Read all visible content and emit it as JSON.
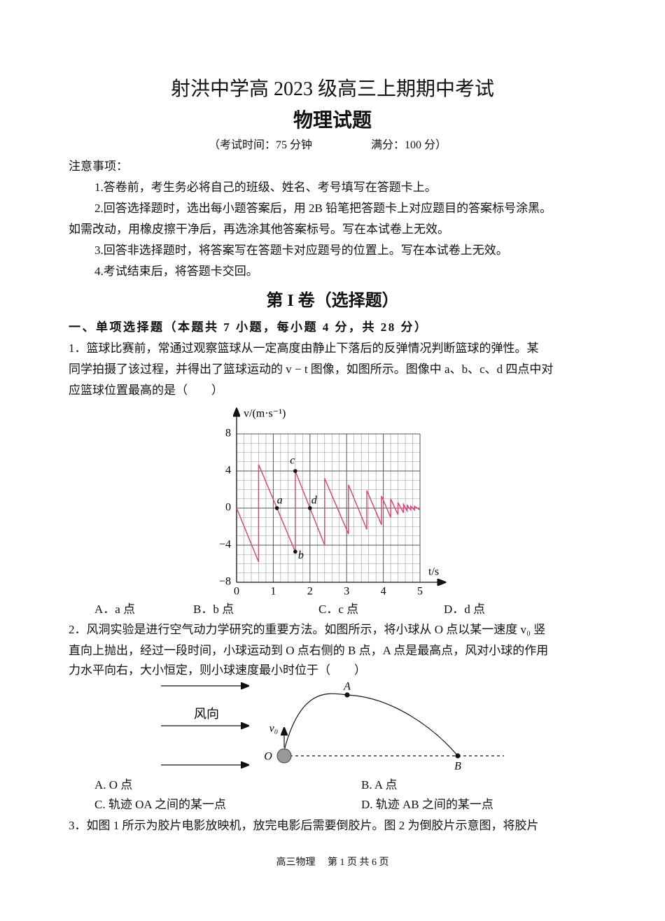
{
  "header": {
    "title": "射洪中学高 2023 级高三上期期中考试",
    "subtitle": "物理试题",
    "time": "（考试时间：75 分钟",
    "score": "满分：100 分）"
  },
  "notes": {
    "heading": "注意事项：",
    "lines": [
      "1.答卷前，考生务必将自己的班级、姓名、考号填写在答题卡上。",
      "2.回答选择题时，选出每小题答案后，用 2B 铅笔把答题卡上对应题目的答案标号涂黑。",
      "如需改动，用橡皮擦干净后，再选涂其他答案标号。写在本试卷上无效。",
      "3.回答非选择题时，将答案写在答题卡对应题号的位置上。写在本试卷上无效。",
      "4.考试结束后，将答题卡交回。"
    ]
  },
  "section": {
    "title": "第 I 卷（选择题）",
    "heading": "一、单项选择题（本题共 7 小题，每小题 4 分，共 28 分）"
  },
  "questions": [
    {
      "lines": [
        "1．篮球比赛前，常通过观察篮球从一定高度由静止下落后的反弹情况判断篮球的弹性。某",
        "同学拍摄了该过程，并得出了篮球运动的 v − t 图像，如图所示。图像中 a、b、c、d 四点中对",
        "应篮球位置最高的是（　　）"
      ],
      "figure": {
        "type": "line",
        "y_label": "v/(m·s⁻¹)",
        "x_label": "t/s",
        "color": "#d9497c",
        "grid": true,
        "x": [
          0,
          0.6,
          0.6,
          1.6,
          1.6,
          2.4,
          2.4,
          3.05,
          3.05,
          3.55,
          3.55,
          3.95,
          3.95,
          4.2,
          4.2,
          4.4,
          4.4,
          4.55,
          4.55,
          4.65,
          4.65,
          4.75,
          4.75,
          4.85,
          4.85,
          5
        ],
        "y": [
          0,
          -5.8,
          4.7,
          -4.7,
          4,
          -4,
          3.2,
          -2.8,
          2.5,
          -2.3,
          1.9,
          -1.8,
          1.3,
          -1,
          1,
          -0.7,
          0.6,
          -0.5,
          0.4,
          -0.3,
          0.3,
          -0.2,
          0.2,
          -0.2,
          0.2,
          -0.2
        ],
        "xlim": [
          0,
          5
        ],
        "ylim": [
          -8,
          8
        ],
        "xticks": [
          0,
          1,
          2,
          3,
          4,
          5
        ],
        "yticks": [
          {
            "value": -8,
            "label": "−8"
          },
          {
            "value": -4,
            "label": "−4"
          },
          0,
          4,
          8
        ],
        "points": {
          "labels": [
            "a",
            "b",
            "c",
            "d"
          ],
          "x": [
            1.1,
            1.6,
            1.6,
            2
          ],
          "y": [
            0,
            -4.7,
            4,
            0
          ]
        }
      },
      "options": [
        "A．a 点",
        "B．b 点",
        "C．c 点",
        "D．d 点"
      ]
    },
    {
      "lines": [
        "2．风洞实验是进行空气动力学研究的重要方法。如图所示，将小球从 O 点以某一速度 v₀ 竖",
        "直向上抛出，经过一段时间，小球运动到 O 点右侧的 B 点，A 点是最高点，风对小球的作用",
        "力水平向右，大小恒定，则小球速度最小时位于（　　）"
      ],
      "diagram": {
        "wind": "风向",
        "v0": "v₀",
        "O": "O",
        "A": "A",
        "B": "B"
      },
      "options": [
        "A. O 点",
        "B. A 点",
        "C. 轨迹 OA 之间的某一点",
        "D. 轨迹 AB 之间的某一点"
      ]
    },
    {
      "lines": [
        "3．如图 1 所示为胶片电影放映机，放完电影后需要倒胶片。图 2 为倒胶片示意图，将胶片"
      ]
    }
  ],
  "footer": "高三物理　 第 1 页 共 6 页"
}
